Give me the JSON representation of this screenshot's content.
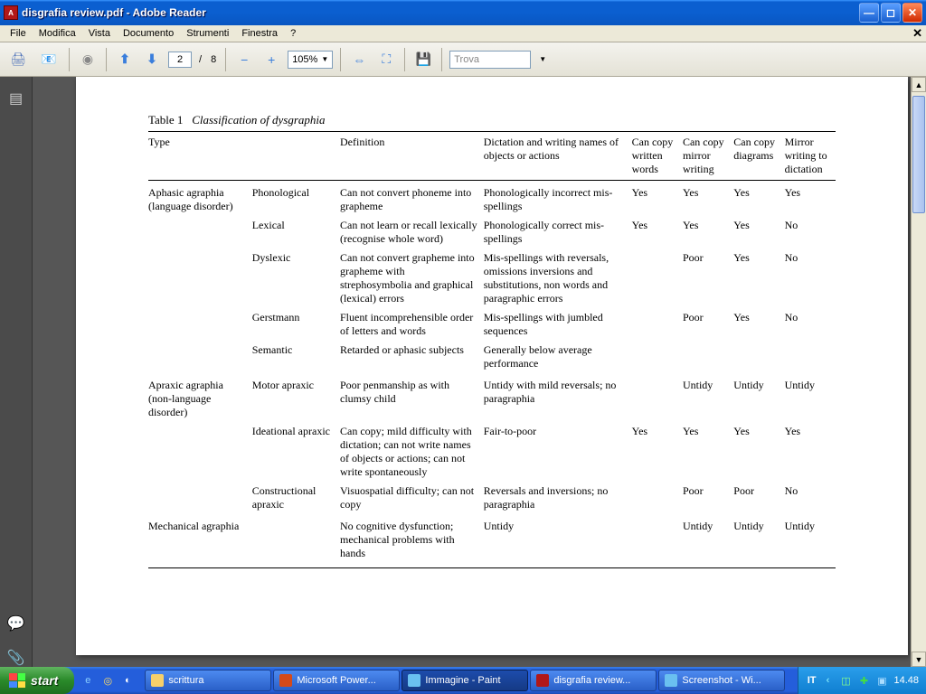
{
  "window": {
    "title": "disgrafia review.pdf - Adobe Reader"
  },
  "menu": {
    "items": [
      "File",
      "Modifica",
      "Vista",
      "Documento",
      "Strumenti",
      "Finestra",
      "?"
    ]
  },
  "toolbar": {
    "page_current": "2",
    "page_sep": "/",
    "page_total": "8",
    "zoom": "105%",
    "find_placeholder": "Trova"
  },
  "document": {
    "caption_label": "Table 1",
    "caption_title": "Classification of dysgraphia",
    "columns": [
      "Type",
      "",
      "Definition",
      "Dictation and writing names of objects or actions",
      "Can copy written words",
      "Can copy mirror writing",
      "Can copy diagrams",
      "Mirror writing to dictation"
    ],
    "rows": [
      {
        "type": "Aphasic agraphia (language disorder)",
        "sub": "Phonological",
        "def": "Can not convert phoneme into grapheme",
        "dict": "Phonologically incorrect mis-spellings",
        "c1": "Yes",
        "c2": "Yes",
        "c3": "Yes",
        "c4": "Yes",
        "section": true
      },
      {
        "type": "",
        "sub": "Lexical",
        "def": "Can not learn or recall lexically (recognise whole word)",
        "dict": "Phonologically correct mis-spellings",
        "c1": "Yes",
        "c2": "Yes",
        "c3": "Yes",
        "c4": "No"
      },
      {
        "type": "",
        "sub": "Dyslexic",
        "def": "Can not convert grapheme into grapheme with strephosymbolia and graphical (lexical) errors",
        "dict": "Mis-spellings with reversals, omissions inversions and substitutions, non words and paragraphic errors",
        "c1": "",
        "c2": "Poor",
        "c3": "Yes",
        "c4": "No"
      },
      {
        "type": "",
        "sub": "Gerstmann",
        "def": "Fluent incomprehensible order of letters and words",
        "dict": "Mis-spellings with jumbled sequences",
        "c1": "",
        "c2": "Poor",
        "c3": "Yes",
        "c4": "No"
      },
      {
        "type": "",
        "sub": "Semantic",
        "def": "Retarded or aphasic subjects",
        "dict": "Generally below average performance",
        "c1": "",
        "c2": "",
        "c3": "",
        "c4": ""
      },
      {
        "type": "Apraxic agraphia (non-language disorder)",
        "sub": "Motor apraxic",
        "def": "Poor penmanship as with clumsy child",
        "dict": "Untidy with mild reversals; no paragraphia",
        "c1": "",
        "c2": "Untidy",
        "c3": "Untidy",
        "c4": "Untidy",
        "section": true
      },
      {
        "type": "",
        "sub": "Ideational apraxic",
        "def": "Can copy; mild difficulty with dictation; can not write names of objects or actions; can not write spontaneously",
        "dict": "Fair-to-poor",
        "c1": "Yes",
        "c2": "Yes",
        "c3": "Yes",
        "c4": "Yes"
      },
      {
        "type": "",
        "sub": "Constructional apraxic",
        "def": "Visuospatial difficulty; can not copy",
        "dict": "Reversals and inversions; no paragraphia",
        "c1": "",
        "c2": "Poor",
        "c3": "Poor",
        "c4": "No"
      },
      {
        "type": "Mechanical agraphia",
        "sub": "",
        "def": "No cognitive dysfunction; mechanical problems with hands",
        "dict": "Untidy",
        "c1": "",
        "c2": "Untidy",
        "c3": "Untidy",
        "c4": "Untidy",
        "section": true,
        "last": true
      }
    ]
  },
  "taskbar": {
    "start": "start",
    "items": [
      {
        "label": "scrittura",
        "color": "#f6d06a",
        "active": false
      },
      {
        "label": "Microsoft Power...",
        "color": "#d44a1a",
        "active": false
      },
      {
        "label": "Immagine - Paint",
        "color": "#6ac0f0",
        "active": true
      },
      {
        "label": "disgrafia review...",
        "color": "#b01818",
        "active": false
      },
      {
        "label": "Screenshot - Wi...",
        "color": "#6ac0f0",
        "active": false
      }
    ],
    "lang": "IT",
    "clock": "14.48"
  }
}
